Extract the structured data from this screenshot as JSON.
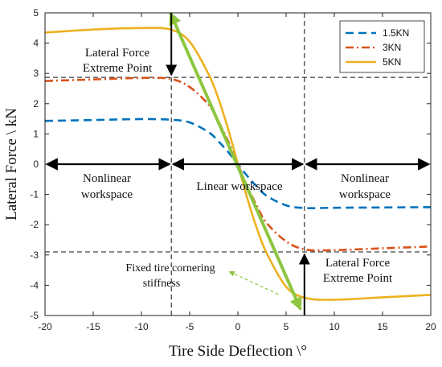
{
  "chart_data": {
    "type": "line",
    "title": "",
    "xlabel": "Tire Side Deflection \\°",
    "ylabel": "Lateral Force \\ kN",
    "xlim": [
      -20,
      20
    ],
    "ylim": [
      -5,
      5
    ],
    "xticks": [
      "-20",
      "-15",
      "-10",
      "-5",
      "0",
      "5",
      "10",
      "15",
      "20"
    ],
    "yticks": [
      "-5",
      "-4",
      "-3",
      "-2",
      "-1",
      "0",
      "1",
      "2",
      "3",
      "4",
      "5"
    ],
    "grid": false,
    "legend": {
      "placement": "top-right"
    },
    "series": [
      {
        "name": "1.5KN",
        "color": "#0072BD",
        "style": "dashed",
        "x": [
          -20,
          -15,
          -10,
          -7,
          -5,
          -3,
          -2,
          -1,
          0,
          1,
          2,
          3,
          5,
          7,
          10,
          15,
          20
        ],
        "y": [
          1.43,
          1.46,
          1.49,
          1.47,
          1.38,
          1.05,
          0.75,
          0.4,
          0,
          -0.4,
          -0.75,
          -1.05,
          -1.36,
          -1.45,
          -1.44,
          -1.43,
          -1.42
        ]
      },
      {
        "name": "3KN",
        "color": "#D95319",
        "style": "dashdot",
        "x": [
          -20,
          -15,
          -10,
          -7,
          -5,
          -3,
          -2,
          -1,
          0,
          1,
          2,
          3,
          5,
          7,
          10,
          15,
          20
        ],
        "y": [
          2.75,
          2.8,
          2.85,
          2.82,
          2.55,
          1.95,
          1.4,
          0.75,
          0,
          -0.75,
          -1.4,
          -1.95,
          -2.55,
          -2.82,
          -2.84,
          -2.78,
          -2.72
        ]
      },
      {
        "name": "5KN",
        "color": "#EDB120",
        "style": "solid",
        "x": [
          -20,
          -15,
          -10,
          -7,
          -5,
          -3,
          -2,
          -1,
          0,
          1,
          2,
          3,
          5,
          7,
          10,
          15,
          20
        ],
        "y": [
          4.35,
          4.45,
          4.5,
          4.45,
          4.05,
          2.95,
          2.15,
          1.15,
          0,
          -1.15,
          -2.15,
          -2.95,
          -4.05,
          -4.42,
          -4.48,
          -4.4,
          -4.32
        ]
      }
    ],
    "reference_lines": {
      "horizontal": [
        2.87,
        -2.9
      ],
      "vertical": [
        -6.9,
        6.9
      ]
    },
    "stiffness_line": {
      "x": [
        -7,
        6.5
      ],
      "y": [
        5,
        -4.8
      ],
      "color": "#8DC63F"
    },
    "annotations": {
      "extreme_top_1": "Lateral Force",
      "extreme_top_2": "Extreme Point",
      "extreme_bottom_1": "Lateral Force",
      "extreme_bottom_2": "Extreme Point",
      "nonlinear_left_1": "Nonlinear",
      "nonlinear_left_2": "workspace",
      "linear": "Linear workspace",
      "nonlinear_right_1": "Nonlinear",
      "nonlinear_right_2": "workspace",
      "stiffness_1": "Fixed tire cornering",
      "stiffness_2": "stiffness"
    }
  }
}
